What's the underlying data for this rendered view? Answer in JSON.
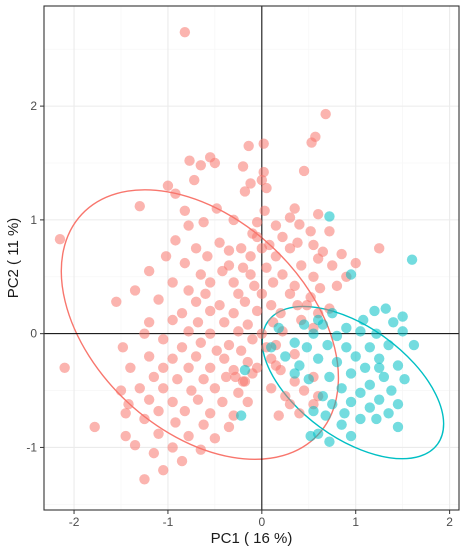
{
  "chart_data": {
    "type": "scatter",
    "title": "",
    "xlabel": "PC1 ( 16 %)",
    "ylabel": "PC2 ( 11 %)",
    "xlim": [
      -2.32,
      2.1
    ],
    "ylim": [
      -1.55,
      2.88
    ],
    "x_ticks": [
      -2,
      -1,
      0,
      1,
      2
    ],
    "y_ticks": [
      -1,
      0,
      1,
      2
    ],
    "x_tick_labels": [
      "-2",
      "-1",
      "0",
      "1",
      "2"
    ],
    "y_tick_labels": [
      "-1",
      "0",
      "1",
      "2"
    ],
    "grid": true,
    "reference_lines": {
      "x": 0,
      "y": 0
    },
    "legend": "none",
    "colors": {
      "group_1": "#f8766d",
      "group_2": "#00bfc4",
      "panel_border": "#333333",
      "grid_major": "#ebebeb",
      "grid_minor": "#f5f5f5",
      "reference_line": "#000000"
    },
    "ellipses": [
      {
        "group": 1,
        "cx": -0.66,
        "cy": 0.08,
        "rx": 1.13,
        "ry": 1.42,
        "angle_deg": -47
      },
      {
        "group": 2,
        "cx": 0.97,
        "cy": -0.43,
        "rx": 0.59,
        "ry": 0.92,
        "angle_deg": -54
      }
    ],
    "series": [
      {
        "group": 1,
        "points": [
          [
            -0.82,
            2.65
          ],
          [
            0.68,
            1.93
          ],
          [
            0.57,
            1.73
          ],
          [
            0.53,
            1.68
          ],
          [
            0.02,
            1.67
          ],
          [
            -0.14,
            1.65
          ],
          [
            -0.55,
            1.55
          ],
          [
            -0.5,
            1.5
          ],
          [
            -0.65,
            1.48
          ],
          [
            -0.77,
            1.52
          ],
          [
            -0.2,
            1.47
          ],
          [
            0.02,
            1.42
          ],
          [
            0.45,
            1.43
          ],
          [
            0.0,
            1.35
          ],
          [
            -0.12,
            1.32
          ],
          [
            0.05,
            1.28
          ],
          [
            -0.18,
            1.25
          ],
          [
            -0.72,
            1.35
          ],
          [
            -1.0,
            1.3
          ],
          [
            -0.92,
            1.23
          ],
          [
            -1.3,
            1.12
          ],
          [
            -0.82,
            1.08
          ],
          [
            -0.48,
            1.1
          ],
          [
            0.03,
            1.08
          ],
          [
            0.35,
            1.1
          ],
          [
            0.6,
            1.05
          ],
          [
            0.3,
            1.02
          ],
          [
            -0.05,
            0.98
          ],
          [
            0.15,
            0.95
          ],
          [
            -0.3,
            1.0
          ],
          [
            -0.62,
            0.98
          ],
          [
            -0.78,
            0.95
          ],
          [
            0.4,
            0.96
          ],
          [
            0.52,
            0.9
          ],
          [
            0.72,
            0.9
          ],
          [
            -0.1,
            0.88
          ],
          [
            -0.05,
            0.85
          ],
          [
            0.22,
            0.85
          ],
          [
            -0.92,
            0.82
          ],
          [
            -0.45,
            0.8
          ],
          [
            0.08,
            0.78
          ],
          [
            0.38,
            0.8
          ],
          [
            0.55,
            0.78
          ],
          [
            -2.15,
            0.83
          ],
          [
            -0.7,
            0.75
          ],
          [
            -0.35,
            0.73
          ],
          [
            -0.22,
            0.75
          ],
          [
            0.0,
            0.75
          ],
          [
            0.3,
            0.75
          ],
          [
            0.65,
            0.72
          ],
          [
            0.85,
            0.7
          ],
          [
            1.25,
            0.75
          ],
          [
            -1.02,
            0.68
          ],
          [
            -0.58,
            0.68
          ],
          [
            -0.12,
            0.68
          ],
          [
            0.15,
            0.68
          ],
          [
            0.6,
            0.66
          ],
          [
            -0.82,
            0.62
          ],
          [
            -0.35,
            0.6
          ],
          [
            -0.2,
            0.58
          ],
          [
            0.05,
            0.58
          ],
          [
            0.42,
            0.6
          ],
          [
            0.75,
            0.6
          ],
          [
            1.0,
            0.62
          ],
          [
            -1.2,
            0.55
          ],
          [
            -0.65,
            0.52
          ],
          [
            -0.42,
            0.55
          ],
          [
            -0.12,
            0.52
          ],
          [
            0.22,
            0.52
          ],
          [
            0.55,
            0.5
          ],
          [
            0.9,
            0.5
          ],
          [
            -0.95,
            0.45
          ],
          [
            -0.55,
            0.45
          ],
          [
            -0.3,
            0.45
          ],
          [
            -0.08,
            0.42
          ],
          [
            0.12,
            0.45
          ],
          [
            0.35,
            0.42
          ],
          [
            0.62,
            0.4
          ],
          [
            0.8,
            0.42
          ],
          [
            -1.35,
            0.38
          ],
          [
            -0.78,
            0.38
          ],
          [
            -0.6,
            0.35
          ],
          [
            -0.25,
            0.35
          ],
          [
            0.0,
            0.35
          ],
          [
            0.3,
            0.35
          ],
          [
            0.52,
            0.32
          ],
          [
            -1.1,
            0.3
          ],
          [
            -0.7,
            0.28
          ],
          [
            -0.45,
            0.25
          ],
          [
            -0.18,
            0.28
          ],
          [
            0.1,
            0.25
          ],
          [
            0.38,
            0.25
          ],
          [
            -1.55,
            0.28
          ],
          [
            -0.85,
            0.18
          ],
          [
            -0.55,
            0.2
          ],
          [
            -0.3,
            0.18
          ],
          [
            -0.05,
            0.2
          ],
          [
            0.2,
            0.18
          ],
          [
            -1.2,
            0.1
          ],
          [
            -0.95,
            0.12
          ],
          [
            -0.68,
            0.1
          ],
          [
            -0.4,
            0.1
          ],
          [
            -0.15,
            0.08
          ],
          [
            0.12,
            0.1
          ],
          [
            -1.25,
            0.0
          ],
          [
            -0.78,
            0.02
          ],
          [
            -0.55,
            0.0
          ],
          [
            -0.25,
            0.02
          ],
          [
            0.0,
            0.0
          ],
          [
            0.22,
            0.02
          ],
          [
            -1.05,
            -0.05
          ],
          [
            -0.65,
            -0.08
          ],
          [
            -0.35,
            -0.1
          ],
          [
            -0.1,
            -0.05
          ],
          [
            0.15,
            -0.1
          ],
          [
            -1.48,
            -0.12
          ],
          [
            -0.85,
            -0.12
          ],
          [
            -0.48,
            -0.15
          ],
          [
            -0.22,
            -0.15
          ],
          [
            0.05,
            -0.12
          ],
          [
            -1.2,
            -0.2
          ],
          [
            -0.95,
            -0.22
          ],
          [
            -0.7,
            -0.2
          ],
          [
            -0.4,
            -0.22
          ],
          [
            -0.15,
            -0.25
          ],
          [
            0.1,
            -0.22
          ],
          [
            -1.4,
            -0.3
          ],
          [
            -1.05,
            -0.3
          ],
          [
            -0.78,
            -0.3
          ],
          [
            -0.55,
            -0.3
          ],
          [
            -0.3,
            -0.32
          ],
          [
            -0.05,
            -0.3
          ],
          [
            -1.15,
            -0.38
          ],
          [
            -0.9,
            -0.4
          ],
          [
            -0.62,
            -0.4
          ],
          [
            -0.38,
            -0.38
          ],
          [
            -0.18,
            -0.42
          ],
          [
            -2.1,
            -0.3
          ],
          [
            -1.3,
            -0.48
          ],
          [
            -1.05,
            -0.48
          ],
          [
            -0.75,
            -0.5
          ],
          [
            -0.5,
            -0.48
          ],
          [
            -0.25,
            -0.52
          ],
          [
            -1.5,
            -0.5
          ],
          [
            -1.2,
            -0.58
          ],
          [
            -0.95,
            -0.6
          ],
          [
            -0.68,
            -0.58
          ],
          [
            -0.42,
            -0.6
          ],
          [
            -0.15,
            -0.6
          ],
          [
            -1.42,
            -0.62
          ],
          [
            -1.1,
            -0.68
          ],
          [
            -0.82,
            -0.68
          ],
          [
            -0.55,
            -0.7
          ],
          [
            -0.3,
            -0.72
          ],
          [
            -1.45,
            -0.7
          ],
          [
            -1.25,
            -0.75
          ],
          [
            -0.92,
            -0.78
          ],
          [
            -0.62,
            -0.8
          ],
          [
            -0.35,
            -0.82
          ],
          [
            -1.1,
            -0.88
          ],
          [
            -0.78,
            -0.9
          ],
          [
            -0.5,
            -0.92
          ],
          [
            -1.78,
            -0.82
          ],
          [
            -1.45,
            -0.9
          ],
          [
            -0.95,
            -1.0
          ],
          [
            -0.65,
            -1.02
          ],
          [
            -1.35,
            -0.98
          ],
          [
            -1.15,
            -1.05
          ],
          [
            -0.85,
            -1.12
          ],
          [
            -1.05,
            -1.2
          ],
          [
            -1.25,
            -1.28
          ],
          [
            -0.2,
            -0.42
          ],
          [
            -0.1,
            -0.35
          ],
          [
            0.2,
            -0.32
          ],
          [
            0.35,
            -0.42
          ],
          [
            0.55,
            -0.38
          ],
          [
            0.45,
            -0.5
          ],
          [
            0.25,
            -0.55
          ],
          [
            0.1,
            -0.48
          ],
          [
            0.3,
            -0.62
          ],
          [
            0.55,
            -0.62
          ],
          [
            0.6,
            -0.55
          ],
          [
            0.18,
            -0.72
          ],
          [
            0.4,
            -0.7
          ],
          [
            0.15,
            -0.28
          ],
          [
            0.35,
            -0.18
          ],
          [
            0.42,
            0.12
          ],
          [
            0.55,
            0.05
          ],
          [
            0.6,
            0.18
          ],
          [
            0.72,
            0.22
          ],
          [
            0.48,
            0.25
          ],
          [
            -0.28,
            -0.38
          ]
        ]
      },
      {
        "group": 2,
        "points": [
          [
            0.72,
            1.03
          ],
          [
            1.6,
            0.65
          ],
          [
            0.95,
            0.52
          ],
          [
            1.2,
            0.2
          ],
          [
            1.32,
            0.22
          ],
          [
            1.5,
            0.15
          ],
          [
            1.08,
            0.12
          ],
          [
            0.75,
            0.18
          ],
          [
            0.65,
            0.08
          ],
          [
            0.9,
            0.05
          ],
          [
            1.4,
            0.1
          ],
          [
            1.5,
            0.02
          ],
          [
            1.22,
            0.0
          ],
          [
            1.05,
            0.02
          ],
          [
            0.8,
            -0.02
          ],
          [
            0.55,
            0.0
          ],
          [
            0.45,
            0.08
          ],
          [
            1.35,
            -0.1
          ],
          [
            1.62,
            -0.1
          ],
          [
            1.15,
            -0.12
          ],
          [
            0.9,
            -0.12
          ],
          [
            0.7,
            -0.1
          ],
          [
            0.48,
            -0.12
          ],
          [
            0.35,
            -0.08
          ],
          [
            1.0,
            -0.2
          ],
          [
            1.25,
            -0.22
          ],
          [
            1.45,
            -0.28
          ],
          [
            0.8,
            -0.25
          ],
          [
            0.6,
            -0.22
          ],
          [
            0.4,
            -0.28
          ],
          [
            1.1,
            -0.3
          ],
          [
            0.95,
            -0.35
          ],
          [
            1.3,
            -0.38
          ],
          [
            1.52,
            -0.4
          ],
          [
            0.72,
            -0.38
          ],
          [
            0.5,
            -0.4
          ],
          [
            1.15,
            -0.45
          ],
          [
            0.85,
            -0.48
          ],
          [
            1.38,
            -0.5
          ],
          [
            1.05,
            -0.52
          ],
          [
            0.65,
            -0.55
          ],
          [
            1.25,
            -0.58
          ],
          [
            0.95,
            -0.6
          ],
          [
            1.45,
            -0.62
          ],
          [
            0.75,
            -0.62
          ],
          [
            1.15,
            -0.65
          ],
          [
            0.55,
            -0.68
          ],
          [
            1.35,
            -0.7
          ],
          [
            0.88,
            -0.7
          ],
          [
            0.68,
            -0.72
          ],
          [
            1.05,
            -0.75
          ],
          [
            1.22,
            -0.75
          ],
          [
            0.85,
            -0.8
          ],
          [
            1.45,
            -0.82
          ],
          [
            0.6,
            -0.88
          ],
          [
            0.52,
            -0.9
          ],
          [
            0.95,
            -0.9
          ],
          [
            0.72,
            -0.95
          ],
          [
            -0.22,
            -0.72
          ],
          [
            0.35,
            -0.35
          ],
          [
            0.1,
            -0.12
          ],
          [
            0.25,
            -0.2
          ],
          [
            0.18,
            0.05
          ],
          [
            -0.18,
            -0.32
          ],
          [
            0.6,
            0.12
          ],
          [
            1.25,
            -0.3
          ]
        ]
      }
    ]
  }
}
